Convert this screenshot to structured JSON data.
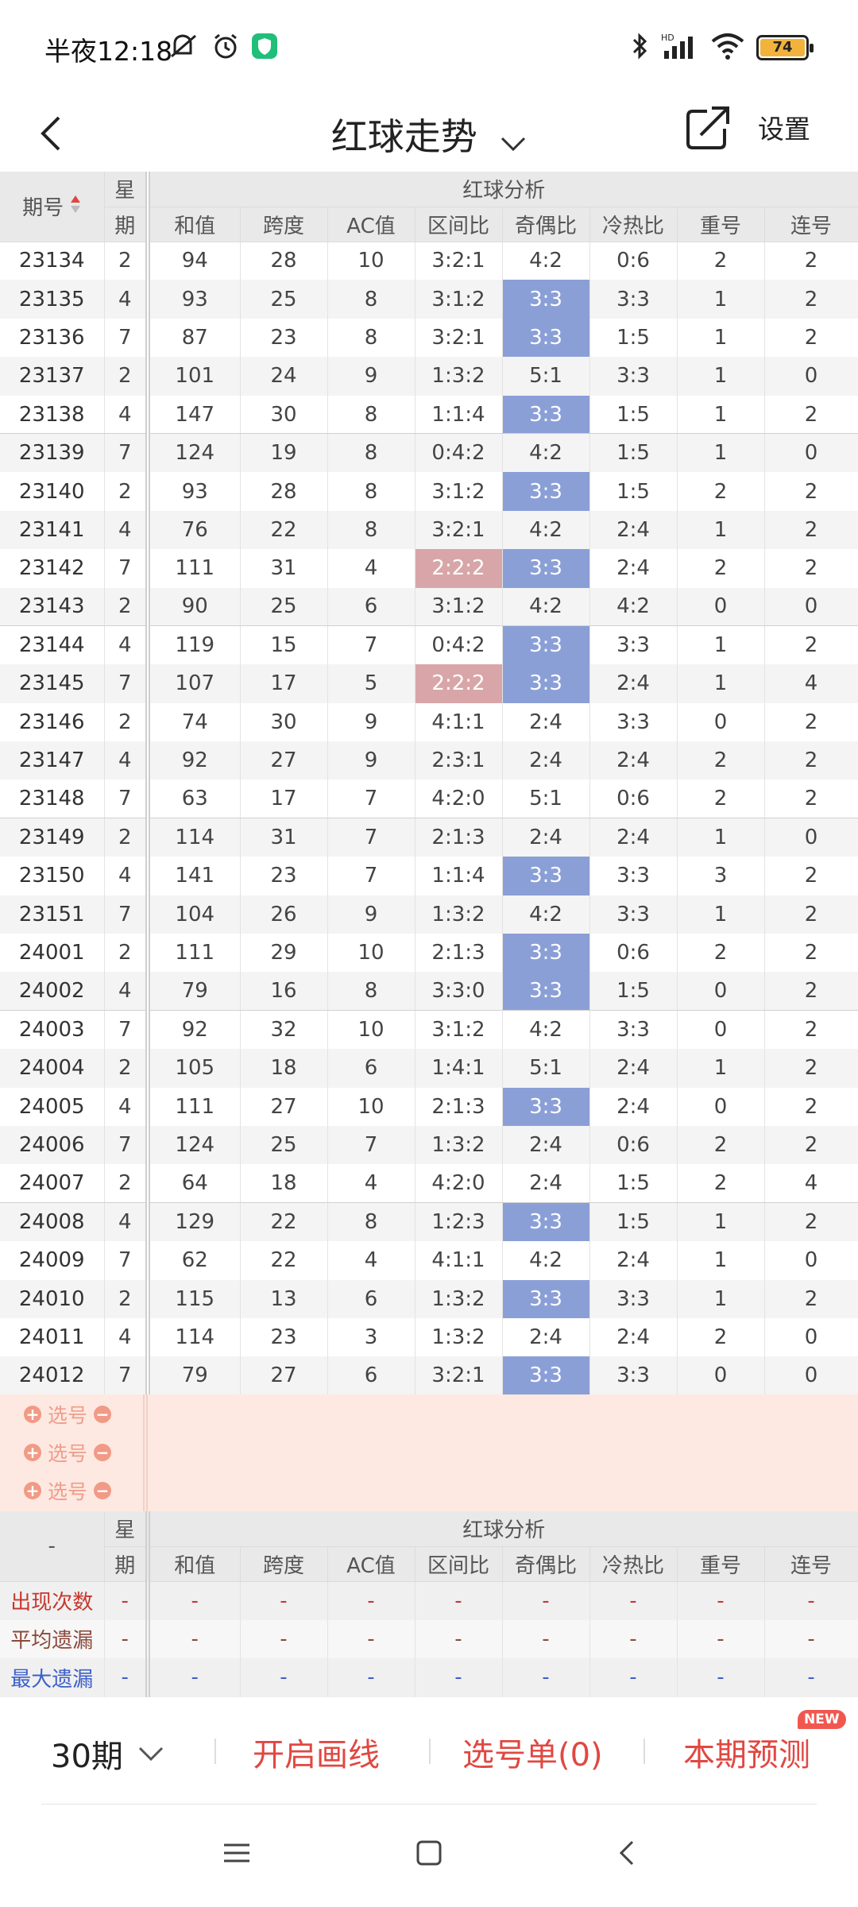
{
  "status": {
    "time": "半夜12:18",
    "battery": "74"
  },
  "nav": {
    "title": "红球走势",
    "settings": "设置"
  },
  "table": {
    "header_period": "期号",
    "header_week_top": "星",
    "header_week_bottom": "期",
    "header_group": "红球分析",
    "columns": [
      "和值",
      "跨度",
      "AC值",
      "区间比",
      "奇偶比",
      "冷热比",
      "重号",
      "连号"
    ],
    "rows": [
      {
        "issue": "23134",
        "week": "2",
        "sum": "94",
        "span": "28",
        "ac": "10",
        "zone": "3:2:1",
        "oe": "4:2",
        "hc": "0:6",
        "rep": "2",
        "con": "2"
      },
      {
        "issue": "23135",
        "week": "4",
        "sum": "93",
        "span": "25",
        "ac": "8",
        "zone": "3:1:2",
        "oe": "3:3",
        "hc": "3:3",
        "rep": "1",
        "con": "2"
      },
      {
        "issue": "23136",
        "week": "7",
        "sum": "87",
        "span": "23",
        "ac": "8",
        "zone": "3:2:1",
        "oe": "3:3",
        "hc": "1:5",
        "rep": "1",
        "con": "2"
      },
      {
        "issue": "23137",
        "week": "2",
        "sum": "101",
        "span": "24",
        "ac": "9",
        "zone": "1:3:2",
        "oe": "5:1",
        "hc": "3:3",
        "rep": "1",
        "con": "0"
      },
      {
        "issue": "23138",
        "week": "4",
        "sum": "147",
        "span": "30",
        "ac": "8",
        "zone": "1:1:4",
        "oe": "3:3",
        "hc": "1:5",
        "rep": "1",
        "con": "2"
      },
      {
        "issue": "23139",
        "week": "7",
        "sum": "124",
        "span": "19",
        "ac": "8",
        "zone": "0:4:2",
        "oe": "4:2",
        "hc": "1:5",
        "rep": "1",
        "con": "0"
      },
      {
        "issue": "23140",
        "week": "2",
        "sum": "93",
        "span": "28",
        "ac": "8",
        "zone": "3:1:2",
        "oe": "3:3",
        "hc": "1:5",
        "rep": "2",
        "con": "2"
      },
      {
        "issue": "23141",
        "week": "4",
        "sum": "76",
        "span": "22",
        "ac": "8",
        "zone": "3:2:1",
        "oe": "4:2",
        "hc": "2:4",
        "rep": "1",
        "con": "2"
      },
      {
        "issue": "23142",
        "week": "7",
        "sum": "111",
        "span": "31",
        "ac": "4",
        "zone": "2:2:2",
        "oe": "3:3",
        "hc": "2:4",
        "rep": "2",
        "con": "2"
      },
      {
        "issue": "23143",
        "week": "2",
        "sum": "90",
        "span": "25",
        "ac": "6",
        "zone": "3:1:2",
        "oe": "4:2",
        "hc": "4:2",
        "rep": "0",
        "con": "0"
      },
      {
        "issue": "23144",
        "week": "4",
        "sum": "119",
        "span": "15",
        "ac": "7",
        "zone": "0:4:2",
        "oe": "3:3",
        "hc": "3:3",
        "rep": "1",
        "con": "2"
      },
      {
        "issue": "23145",
        "week": "7",
        "sum": "107",
        "span": "17",
        "ac": "5",
        "zone": "2:2:2",
        "oe": "3:3",
        "hc": "2:4",
        "rep": "1",
        "con": "4"
      },
      {
        "issue": "23146",
        "week": "2",
        "sum": "74",
        "span": "30",
        "ac": "9",
        "zone": "4:1:1",
        "oe": "2:4",
        "hc": "3:3",
        "rep": "0",
        "con": "2"
      },
      {
        "issue": "23147",
        "week": "4",
        "sum": "92",
        "span": "27",
        "ac": "9",
        "zone": "2:3:1",
        "oe": "2:4",
        "hc": "2:4",
        "rep": "2",
        "con": "2"
      },
      {
        "issue": "23148",
        "week": "7",
        "sum": "63",
        "span": "17",
        "ac": "7",
        "zone": "4:2:0",
        "oe": "5:1",
        "hc": "0:6",
        "rep": "2",
        "con": "2"
      },
      {
        "issue": "23149",
        "week": "2",
        "sum": "114",
        "span": "31",
        "ac": "7",
        "zone": "2:1:3",
        "oe": "2:4",
        "hc": "2:4",
        "rep": "1",
        "con": "0"
      },
      {
        "issue": "23150",
        "week": "4",
        "sum": "141",
        "span": "23",
        "ac": "7",
        "zone": "1:1:4",
        "oe": "3:3",
        "hc": "3:3",
        "rep": "3",
        "con": "2"
      },
      {
        "issue": "23151",
        "week": "7",
        "sum": "104",
        "span": "26",
        "ac": "9",
        "zone": "1:3:2",
        "oe": "4:2",
        "hc": "3:3",
        "rep": "1",
        "con": "2"
      },
      {
        "issue": "24001",
        "week": "2",
        "sum": "111",
        "span": "29",
        "ac": "10",
        "zone": "2:1:3",
        "oe": "3:3",
        "hc": "0:6",
        "rep": "2",
        "con": "2"
      },
      {
        "issue": "24002",
        "week": "4",
        "sum": "79",
        "span": "16",
        "ac": "8",
        "zone": "3:3:0",
        "oe": "3:3",
        "hc": "1:5",
        "rep": "0",
        "con": "2"
      },
      {
        "issue": "24003",
        "week": "7",
        "sum": "92",
        "span": "32",
        "ac": "10",
        "zone": "3:1:2",
        "oe": "4:2",
        "hc": "3:3",
        "rep": "0",
        "con": "2"
      },
      {
        "issue": "24004",
        "week": "2",
        "sum": "105",
        "span": "18",
        "ac": "6",
        "zone": "1:4:1",
        "oe": "5:1",
        "hc": "2:4",
        "rep": "1",
        "con": "2"
      },
      {
        "issue": "24005",
        "week": "4",
        "sum": "111",
        "span": "27",
        "ac": "10",
        "zone": "2:1:3",
        "oe": "3:3",
        "hc": "2:4",
        "rep": "0",
        "con": "2"
      },
      {
        "issue": "24006",
        "week": "7",
        "sum": "124",
        "span": "25",
        "ac": "7",
        "zone": "1:3:2",
        "oe": "2:4",
        "hc": "0:6",
        "rep": "2",
        "con": "2"
      },
      {
        "issue": "24007",
        "week": "2",
        "sum": "64",
        "span": "18",
        "ac": "4",
        "zone": "4:2:0",
        "oe": "2:4",
        "hc": "1:5",
        "rep": "2",
        "con": "4"
      },
      {
        "issue": "24008",
        "week": "4",
        "sum": "129",
        "span": "22",
        "ac": "8",
        "zone": "1:2:3",
        "oe": "3:3",
        "hc": "1:5",
        "rep": "1",
        "con": "2"
      },
      {
        "issue": "24009",
        "week": "7",
        "sum": "62",
        "span": "22",
        "ac": "4",
        "zone": "4:1:1",
        "oe": "4:2",
        "hc": "2:4",
        "rep": "1",
        "con": "0"
      },
      {
        "issue": "24010",
        "week": "2",
        "sum": "115",
        "span": "13",
        "ac": "6",
        "zone": "1:3:2",
        "oe": "3:3",
        "hc": "3:3",
        "rep": "1",
        "con": "2"
      },
      {
        "issue": "24011",
        "week": "4",
        "sum": "114",
        "span": "23",
        "ac": "3",
        "zone": "1:3:2",
        "oe": "2:4",
        "hc": "2:4",
        "rep": "2",
        "con": "0"
      },
      {
        "issue": "24012",
        "week": "7",
        "sum": "79",
        "span": "27",
        "ac": "6",
        "zone": "3:2:1",
        "oe": "3:3",
        "hc": "3:3",
        "rep": "0",
        "con": "0"
      }
    ],
    "pick_label": "选号"
  },
  "stats": {
    "dash": "-",
    "rows": [
      {
        "label": "出现次数"
      },
      {
        "label": "平均遗漏"
      },
      {
        "label": "最大遗漏"
      }
    ]
  },
  "bottom": {
    "period": "30期",
    "draw_line": "开启画线",
    "pick_list": "选号单(0)",
    "predict": "本期预测",
    "new_badge": "NEW"
  }
}
